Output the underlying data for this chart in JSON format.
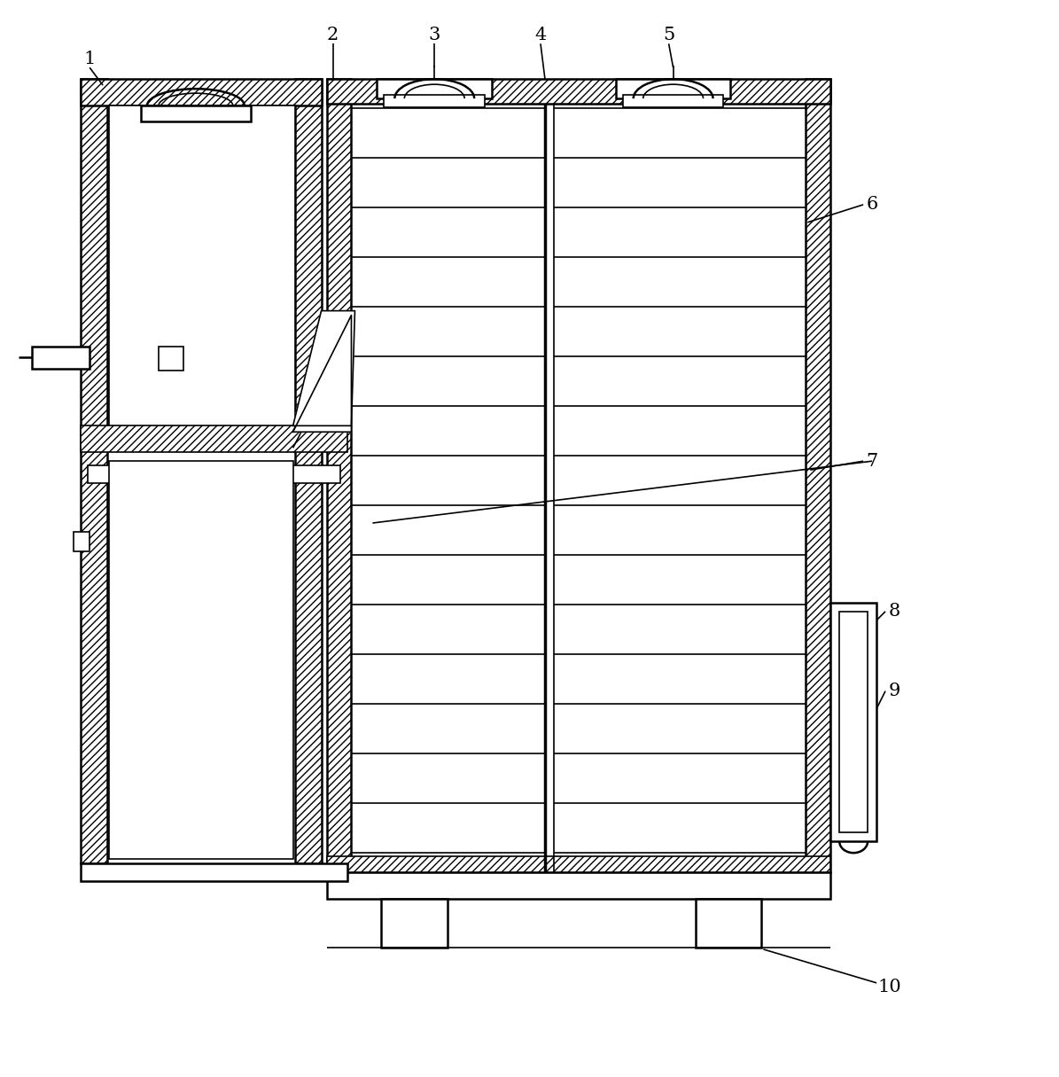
{
  "bg_color": "#ffffff",
  "lc": "#000000",
  "fig_w": 11.95,
  "fig_h": 12.15,
  "dpi": 100
}
